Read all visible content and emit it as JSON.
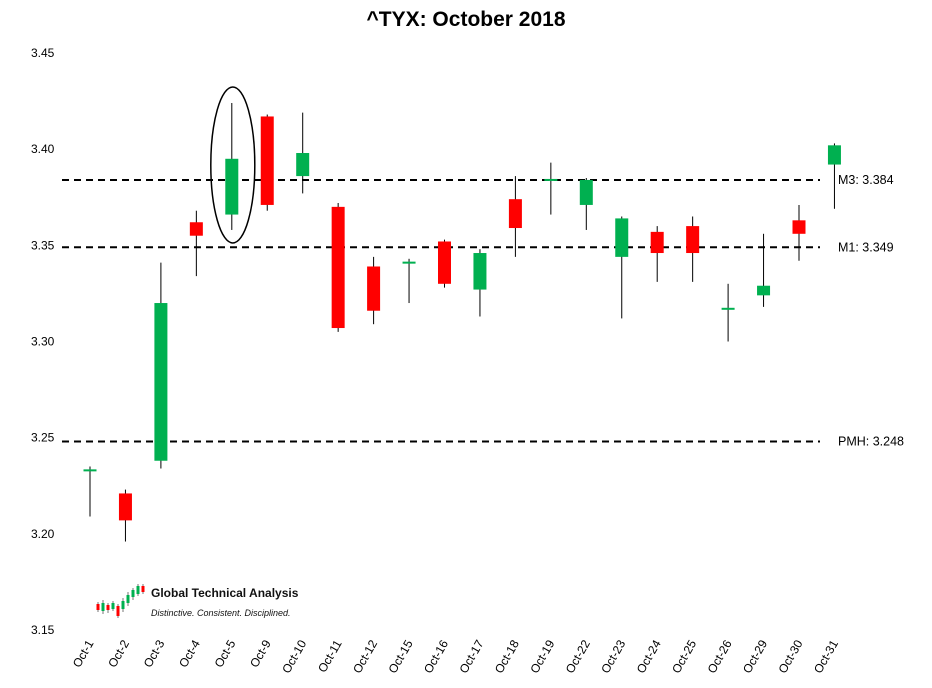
{
  "chart_data": {
    "type": "candlestick",
    "title": "^TYX: October 2018",
    "xlabel": "",
    "ylabel": "",
    "ylim": [
      3.15,
      3.45
    ],
    "yticks": [
      "3.15",
      "3.20",
      "3.25",
      "3.30",
      "3.35",
      "3.40",
      "3.45"
    ],
    "grid": false,
    "colors": {
      "up": "#00b050",
      "down": "#ff0000",
      "wick": "#000000",
      "reference": "#000000"
    },
    "candles": [
      {
        "date": "Oct-1",
        "open": 3.233,
        "high": 3.235,
        "low": 3.209,
        "close": 3.233
      },
      {
        "date": "Oct-2",
        "open": 3.221,
        "high": 3.223,
        "low": 3.196,
        "close": 3.207
      },
      {
        "date": "Oct-3",
        "open": 3.238,
        "high": 3.341,
        "low": 3.234,
        "close": 3.32
      },
      {
        "date": "Oct-4",
        "open": 3.362,
        "high": 3.368,
        "low": 3.334,
        "close": 3.355
      },
      {
        "date": "Oct-5",
        "open": 3.366,
        "high": 3.424,
        "low": 3.358,
        "close": 3.395
      },
      {
        "date": "Oct-9",
        "open": 3.417,
        "high": 3.418,
        "low": 3.368,
        "close": 3.371
      },
      {
        "date": "Oct-10",
        "open": 3.386,
        "high": 3.419,
        "low": 3.377,
        "close": 3.398
      },
      {
        "date": "Oct-11",
        "open": 3.37,
        "high": 3.372,
        "low": 3.305,
        "close": 3.307
      },
      {
        "date": "Oct-12",
        "open": 3.339,
        "high": 3.344,
        "low": 3.309,
        "close": 3.316
      },
      {
        "date": "Oct-15",
        "open": 3.34,
        "high": 3.343,
        "low": 3.32,
        "close": 3.341
      },
      {
        "date": "Oct-16",
        "open": 3.352,
        "high": 3.353,
        "low": 3.328,
        "close": 3.33
      },
      {
        "date": "Oct-17",
        "open": 3.327,
        "high": 3.348,
        "low": 3.313,
        "close": 3.346
      },
      {
        "date": "Oct-18",
        "open": 3.374,
        "high": 3.386,
        "low": 3.344,
        "close": 3.359
      },
      {
        "date": "Oct-19",
        "open": 3.384,
        "high": 3.393,
        "low": 3.366,
        "close": 3.384
      },
      {
        "date": "Oct-22",
        "open": 3.371,
        "high": 3.385,
        "low": 3.358,
        "close": 3.384
      },
      {
        "date": "Oct-23",
        "open": 3.344,
        "high": 3.365,
        "low": 3.312,
        "close": 3.364
      },
      {
        "date": "Oct-24",
        "open": 3.357,
        "high": 3.36,
        "low": 3.331,
        "close": 3.346
      },
      {
        "date": "Oct-25",
        "open": 3.36,
        "high": 3.365,
        "low": 3.331,
        "close": 3.346
      },
      {
        "date": "Oct-26",
        "open": 3.317,
        "high": 3.33,
        "low": 3.3,
        "close": 3.317
      },
      {
        "date": "Oct-29",
        "open": 3.324,
        "high": 3.356,
        "low": 3.318,
        "close": 3.329
      },
      {
        "date": "Oct-30",
        "open": 3.363,
        "high": 3.371,
        "low": 3.342,
        "close": 3.356
      },
      {
        "date": "Oct-31",
        "open": 3.392,
        "high": 3.403,
        "low": 3.369,
        "close": 3.402
      }
    ],
    "reference_lines": [
      {
        "label": "M3: 3.384",
        "value": 3.384
      },
      {
        "label": "M1: 3.349",
        "value": 3.349
      },
      {
        "label": "PMH: 3.248",
        "value": 3.248
      }
    ],
    "annotations": [
      {
        "type": "ellipse",
        "target": "Oct-5"
      }
    ]
  },
  "branding": {
    "name": "Global Technical Analysis",
    "tagline": "Distinctive. Consistent. Disciplined."
  }
}
